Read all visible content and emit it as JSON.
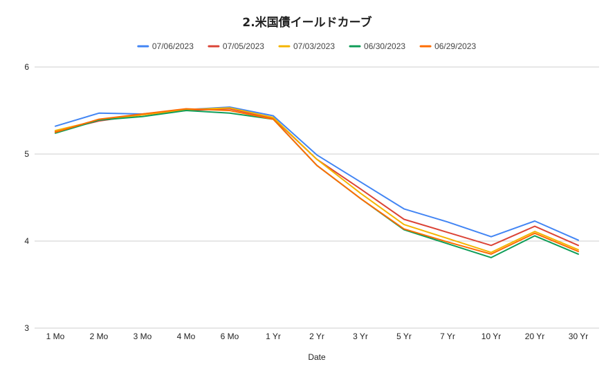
{
  "chart_data": {
    "type": "line",
    "title": "2.米国債イールドカーブ",
    "xlabel": "Date",
    "ylabel": "",
    "ylim": [
      3,
      6
    ],
    "yticks": [
      3,
      4,
      5,
      6
    ],
    "grid": true,
    "legend_position": "top",
    "categories": [
      "1 Mo",
      "2 Mo",
      "3 Mo",
      "4 Mo",
      "6 Mo",
      "1 Yr",
      "2 Yr",
      "3 Yr",
      "5 Yr",
      "7 Yr",
      "10 Yr",
      "20 Yr",
      "30 Yr"
    ],
    "series": [
      {
        "name": "07/06/2023",
        "color": "#4285f4",
        "values": [
          5.32,
          5.47,
          5.46,
          5.51,
          5.54,
          5.44,
          4.99,
          4.68,
          4.37,
          4.22,
          4.05,
          4.23,
          4.01
        ]
      },
      {
        "name": "07/05/2023",
        "color": "#db4437",
        "values": [
          5.26,
          5.38,
          5.45,
          5.5,
          5.52,
          5.41,
          4.94,
          4.6,
          4.25,
          4.1,
          3.95,
          4.17,
          3.95
        ]
      },
      {
        "name": "07/03/2023",
        "color": "#f4b400",
        "values": [
          5.27,
          5.39,
          5.45,
          5.51,
          5.53,
          5.42,
          4.94,
          4.55,
          4.19,
          4.03,
          3.87,
          4.11,
          3.9
        ]
      },
      {
        "name": "06/30/2023",
        "color": "#0f9d58",
        "values": [
          5.24,
          5.39,
          5.43,
          5.5,
          5.47,
          5.4,
          4.87,
          4.49,
          4.13,
          3.97,
          3.81,
          4.06,
          3.85
        ]
      },
      {
        "name": "06/29/2023",
        "color": "#ff6d01",
        "values": [
          5.25,
          5.4,
          5.46,
          5.52,
          5.5,
          5.4,
          4.87,
          4.49,
          4.14,
          3.99,
          3.85,
          4.09,
          3.88
        ]
      }
    ]
  }
}
